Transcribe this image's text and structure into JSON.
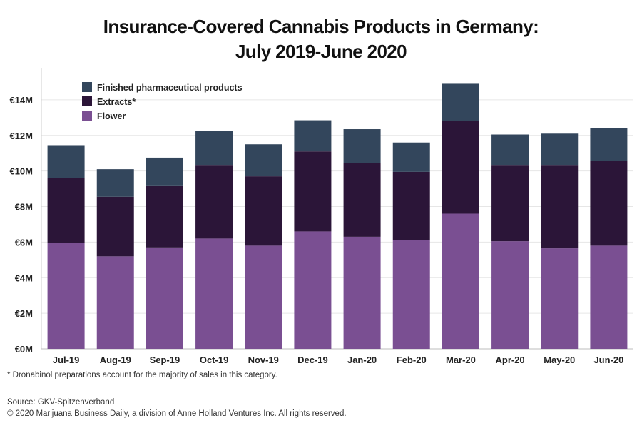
{
  "title_line1": "Insurance-Covered Cannabis Products in Germany:",
  "title_line2": "July 2019-June 2020",
  "footnote": "* Dronabinol preparations account for the majority of sales in this category.",
  "source": "Source: GKV-Spitzenverband",
  "copyright": "© 2020 Marijuana Business Daily, a division of Anne Holland Ventures Inc. All rights reserved.",
  "chart_data": {
    "type": "bar",
    "stacked": true,
    "categories": [
      "Jul-19",
      "Aug-19",
      "Sep-19",
      "Oct-19",
      "Nov-19",
      "Dec-19",
      "Jan-20",
      "Feb-20",
      "Mar-20",
      "Apr-20",
      "May-20",
      "Jun-20"
    ],
    "series": [
      {
        "name": "Flower",
        "color": "#7a4f92",
        "values": [
          5.95,
          5.2,
          5.7,
          6.2,
          5.8,
          6.6,
          6.3,
          6.1,
          7.6,
          6.05,
          5.65,
          5.8
        ]
      },
      {
        "name": "Extracts*",
        "color": "#2b1538",
        "values": [
          3.65,
          3.35,
          3.45,
          4.1,
          3.9,
          4.5,
          4.15,
          3.85,
          5.2,
          4.25,
          4.65,
          4.75
        ]
      },
      {
        "name": "Finished pharmaceutical products",
        "color": "#33465c",
        "values": [
          1.85,
          1.55,
          1.6,
          1.95,
          1.8,
          1.75,
          1.9,
          1.65,
          2.1,
          1.75,
          1.8,
          1.85
        ]
      }
    ],
    "legend_order": [
      "Finished pharmaceutical products",
      "Extracts*",
      "Flower"
    ],
    "y_ticks": [
      0,
      2,
      4,
      6,
      8,
      10,
      12,
      14
    ],
    "y_tick_labels": [
      "€0M",
      "€2M",
      "€4M",
      "€6M",
      "€8M",
      "€10M",
      "€12M",
      "€14M"
    ],
    "ylim": [
      0,
      15.8
    ],
    "unit": "€M",
    "grid": true,
    "legend_position": "top-left"
  }
}
